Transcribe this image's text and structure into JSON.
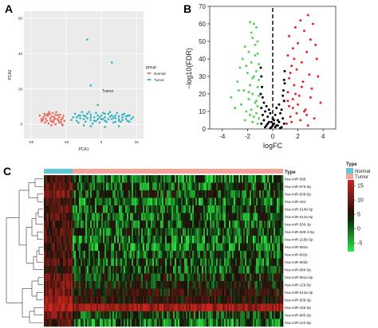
{
  "panels": {
    "a": {
      "letter": "A"
    },
    "b": {
      "letter": "B"
    },
    "c": {
      "letter": "C"
    }
  },
  "chart_data": [
    {
      "id": "pca",
      "type": "scatter",
      "xlabel": "PCA1",
      "ylabel": "PCA2",
      "xticks": [
        -20,
        -10,
        0,
        10
      ],
      "yticks": [
        0,
        20,
        40,
        60
      ],
      "xlim": [
        -22,
        12
      ],
      "ylim": [
        -8,
        64
      ],
      "legend": {
        "title": "group",
        "placement": "right",
        "entries": [
          "Normal",
          "Tumor"
        ]
      },
      "annotation": "Tumor",
      "colors": {
        "Normal": "#e8695a",
        "Tumor": "#2bb3c0"
      },
      "series": [
        {
          "name": "Normal",
          "points": [
            [
              -17,
              3
            ],
            [
              -16.5,
              4
            ],
            [
              -16,
              5
            ],
            [
              -15.5,
              2
            ],
            [
              -15,
              6
            ],
            [
              -14.5,
              3.5
            ],
            [
              -14,
              4.5
            ],
            [
              -13.5,
              2.5
            ],
            [
              -13,
              5.5
            ],
            [
              -12.5,
              3
            ],
            [
              -12,
              4
            ],
            [
              -11.5,
              1.5
            ],
            [
              -11,
              3.5
            ],
            [
              -10.5,
              2
            ],
            [
              -16,
              1
            ],
            [
              -15,
              0.5
            ],
            [
              -14,
              1.5
            ],
            [
              -13,
              0
            ],
            [
              -12,
              1
            ],
            [
              -11,
              -0.5
            ],
            [
              -17.5,
              5
            ],
            [
              -14.8,
              7
            ],
            [
              -13.8,
              6.5
            ],
            [
              -12.8,
              7
            ],
            [
              -11.8,
              5.5
            ],
            [
              -16.2,
              6
            ],
            [
              -15.2,
              4.8
            ],
            [
              -14.2,
              -0.5
            ],
            [
              -13.2,
              3.2
            ],
            [
              -12.2,
              2.2
            ],
            [
              -10.8,
              4.8
            ],
            [
              -11.2,
              0.2
            ],
            [
              -17,
              1.8
            ],
            [
              -15.8,
              3.2
            ],
            [
              -14.4,
              2.2
            ],
            [
              -13.4,
              4.2
            ],
            [
              -12.4,
              5.2
            ],
            [
              -11.4,
              2.8
            ],
            [
              -16.6,
              2.6
            ],
            [
              -15.4,
              5.6
            ],
            [
              -14.6,
              5.8
            ],
            [
              -13.6,
              1.2
            ]
          ]
        },
        {
          "name": "Tumor",
          "points": [
            [
              -8,
              4
            ],
            [
              -7,
              2
            ],
            [
              -6,
              5
            ],
            [
              -5,
              3
            ],
            [
              -4,
              6
            ],
            [
              -3,
              4
            ],
            [
              -2,
              2
            ],
            [
              -1,
              5
            ],
            [
              0,
              3
            ],
            [
              1,
              4
            ],
            [
              2,
              6
            ],
            [
              3,
              3
            ],
            [
              4,
              5
            ],
            [
              5,
              2
            ],
            [
              6,
              4
            ],
            [
              7,
              3
            ],
            [
              8,
              5
            ],
            [
              -7.5,
              6
            ],
            [
              -6.5,
              1
            ],
            [
              -5.5,
              7
            ],
            [
              -4.5,
              1.5
            ],
            [
              -3.5,
              7
            ],
            [
              -2.5,
              0.5
            ],
            [
              -1.5,
              6.5
            ],
            [
              -0.5,
              1
            ],
            [
              0.5,
              6.5
            ],
            [
              1.5,
              1.5
            ],
            [
              2.5,
              7
            ],
            [
              3.5,
              1
            ],
            [
              4.5,
              6.5
            ],
            [
              5.5,
              1.5
            ],
            [
              6.5,
              6
            ],
            [
              7.5,
              2
            ],
            [
              8.5,
              3
            ],
            [
              9,
              4
            ],
            [
              -6,
              3.5
            ],
            [
              -4,
              3.5
            ],
            [
              -2,
              4
            ],
            [
              0,
              5
            ],
            [
              2,
              3
            ],
            [
              4,
              3.5
            ],
            [
              6,
              5.5
            ],
            [
              -5,
              5
            ],
            [
              -3,
              2.5
            ],
            [
              -1,
              3
            ],
            [
              1,
              2
            ],
            [
              3,
              5
            ],
            [
              5,
              4.5
            ],
            [
              7,
              4.5
            ],
            [
              -7,
              4
            ],
            [
              -8.5,
              2.5
            ],
            [
              -3,
              5.5
            ],
            [
              1,
              6
            ],
            [
              3.5,
              4
            ],
            [
              6,
              2.5
            ],
            [
              -4.5,
              4.5
            ],
            [
              -0.5,
              4
            ],
            [
              2.5,
              4.5
            ],
            [
              5,
              3
            ],
            [
              7.5,
              5
            ],
            [
              -1.5,
              2
            ],
            [
              0.5,
              3
            ],
            [
              -6.5,
              5
            ],
            [
              4,
              1.5
            ],
            [
              8,
              1.5
            ],
            [
              -3,
              -1
            ],
            [
              1,
              -1.5
            ],
            [
              5,
              -1
            ],
            [
              -5,
              -0.5
            ],
            [
              -4,
              48
            ],
            [
              -3,
              22
            ],
            [
              3,
              35
            ],
            [
              -1,
              11
            ]
          ]
        }
      ]
    },
    {
      "id": "volcano",
      "type": "scatter",
      "xlabel": "logFC",
      "ylabel": "−log10(FDR)",
      "xticks": [
        -4,
        -2,
        0,
        2,
        4
      ],
      "yticks": [
        0,
        10,
        20,
        30,
        40,
        50,
        60,
        70
      ],
      "xlim": [
        -5,
        5
      ],
      "ylim": [
        0,
        70
      ],
      "colors": {
        "down": "#55d35a",
        "ns": "#000000",
        "up": "#e8262a"
      },
      "series": [
        {
          "name": "down",
          "points": [
            [
              -1.8,
              61
            ],
            [
              -1.5,
              60
            ],
            [
              -1.3,
              58
            ],
            [
              -2.2,
              47
            ],
            [
              -1.6,
              52
            ],
            [
              -1.2,
              50
            ],
            [
              -1.9,
              44
            ],
            [
              -1.4,
              42
            ],
            [
              -2.4,
              40
            ],
            [
              -1.7,
              38
            ],
            [
              -1.1,
              37
            ],
            [
              -2.6,
              35
            ],
            [
              -1.3,
              33
            ],
            [
              -2,
              32
            ],
            [
              -1.5,
              30
            ],
            [
              -1.1,
              28
            ],
            [
              -2.8,
              27
            ],
            [
              -1.8,
              25
            ],
            [
              -1.2,
              24
            ],
            [
              -2.3,
              22
            ],
            [
              -1.6,
              20
            ],
            [
              -1.1,
              19
            ],
            [
              -1.9,
              17
            ],
            [
              -1.4,
              15
            ],
            [
              -2.5,
              14
            ],
            [
              -1.2,
              13
            ],
            [
              -1.7,
              11
            ],
            [
              -2.1,
              10
            ],
            [
              -1.3,
              9
            ],
            [
              -1.8,
              8
            ],
            [
              -1.5,
              7
            ],
            [
              -1.1,
              6
            ],
            [
              -2.2,
              5
            ],
            [
              -1.6,
              4
            ],
            [
              -1.2,
              3
            ],
            [
              -3.3,
              18
            ],
            [
              -3,
              12
            ],
            [
              -2.7,
              22
            ],
            [
              -1.7,
              55
            ],
            [
              -1.4,
              48
            ],
            [
              -2.1,
              36
            ],
            [
              -1.2,
              43
            ],
            [
              -1.6,
              29
            ],
            [
              -1.9,
              21
            ],
            [
              -1.3,
              16
            ]
          ]
        },
        {
          "name": "ns",
          "points": [
            [
              -0.9,
              3
            ],
            [
              -0.7,
              5
            ],
            [
              -0.5,
              2
            ],
            [
              -0.3,
              4
            ],
            [
              -0.1,
              1
            ],
            [
              0.1,
              3
            ],
            [
              0.3,
              2
            ],
            [
              0.5,
              4
            ],
            [
              0.7,
              1
            ],
            [
              0.9,
              3
            ],
            [
              -0.8,
              8
            ],
            [
              -0.6,
              10
            ],
            [
              -0.4,
              7
            ],
            [
              -0.2,
              9
            ],
            [
              0,
              6
            ],
            [
              0.2,
              8
            ],
            [
              0.4,
              5
            ],
            [
              0.6,
              9
            ],
            [
              0.8,
              6
            ],
            [
              -0.9,
              12
            ],
            [
              -0.7,
              15
            ],
            [
              -0.5,
              13
            ],
            [
              0.5,
              14
            ],
            [
              0.7,
              11
            ],
            [
              0.9,
              16
            ],
            [
              -0.95,
              20
            ],
            [
              -0.85,
              24
            ],
            [
              0.85,
              22
            ],
            [
              0.95,
              26
            ],
            [
              -0.6,
              1
            ],
            [
              -0.2,
              0.5
            ],
            [
              0.2,
              1
            ],
            [
              0.6,
              0.5
            ],
            [
              -0.4,
              3
            ],
            [
              0.4,
              2
            ],
            [
              0,
              2
            ],
            [
              -0.1,
              4
            ],
            [
              0.1,
              5
            ],
            [
              -0.8,
              18
            ],
            [
              0.8,
              19
            ],
            [
              -0.9,
              30
            ],
            [
              0.9,
              28
            ],
            [
              -0.95,
              35
            ],
            [
              0.95,
              33
            ],
            [
              -0.3,
              11
            ],
            [
              0.3,
              12
            ]
          ]
        },
        {
          "name": "up",
          "points": [
            [
              2.8,
              65
            ],
            [
              2.2,
              62
            ],
            [
              3.2,
              60
            ],
            [
              1.8,
              58
            ],
            [
              2.5,
              56
            ],
            [
              1.3,
              53
            ],
            [
              3,
              51
            ],
            [
              2,
              49
            ],
            [
              1.6,
              46
            ],
            [
              2.7,
              44
            ],
            [
              1.2,
              42
            ],
            [
              3.5,
              40
            ],
            [
              2.3,
              38
            ],
            [
              1.5,
              36
            ],
            [
              1.9,
              34
            ],
            [
              2.9,
              31
            ],
            [
              1.3,
              29
            ],
            [
              2.4,
              27
            ],
            [
              1.7,
              25
            ],
            [
              3.1,
              23
            ],
            [
              1.2,
              21
            ],
            [
              2.1,
              19
            ],
            [
              1.6,
              17
            ],
            [
              3.8,
              15
            ],
            [
              1.3,
              13
            ],
            [
              2.6,
              11
            ],
            [
              1.9,
              9
            ],
            [
              1.4,
              7
            ],
            [
              3.3,
              6
            ],
            [
              2.2,
              5
            ],
            [
              1.5,
              4
            ],
            [
              1.1,
              3
            ],
            [
              2.8,
              2
            ],
            [
              1.8,
              20
            ],
            [
              3.6,
              30
            ],
            [
              2.5,
              10
            ],
            [
              1.4,
              32
            ],
            [
              2,
              14
            ],
            [
              2.7,
              8
            ],
            [
              1.6,
              12
            ],
            [
              3,
              18
            ],
            [
              2.3,
              24
            ],
            [
              1.2,
              16
            ],
            [
              3.4,
              48
            ],
            [
              1.7,
              40
            ]
          ]
        }
      ],
      "threshold_x": 0
    },
    {
      "id": "heatmap",
      "type": "heatmap",
      "legend_annotation": {
        "title": "Type",
        "entries": [
          "Normal",
          "Tumor"
        ],
        "colors": [
          "#5fc8d2",
          "#f2a39a"
        ]
      },
      "legend_annotation_title_right": "Type",
      "colorbar": {
        "ticks": [
          15,
          10,
          5,
          0,
          -5
        ],
        "range": [
          -8,
          17
        ],
        "colors": [
          "#22e63a",
          "#000000",
          "#d42a2a"
        ]
      },
      "rows": [
        "hsa-miR-599",
        "hsa-miR-875-5p",
        "hsa-miR-508-5p",
        "hsa-miR-184",
        "hsa-miR-514b-5p",
        "hsa-miR-514a-5p",
        "hsa-miR-506-3p",
        "hsa-miR-509-3-5p",
        "hsa-miR-216b-5p",
        "hsa-miR-892a",
        "hsa-miR-891b",
        "hsa-miR-892b",
        "hsa-miR-888-5p",
        "hsa-miR-891a-5p",
        "hsa-miR-129-5p",
        "hsa-miR-514a-3p",
        "hsa-miR-508-3p",
        "hsa-miR-155-5p",
        "hsa-miR-885-5p",
        "hsa-miR-122-5p"
      ],
      "normal_fraction": 0.12,
      "row_mean_normal": [
        4,
        6,
        9,
        3,
        5,
        5,
        5,
        5,
        4,
        4,
        5,
        5,
        4,
        7,
        8,
        9,
        11,
        15,
        8,
        5
      ],
      "row_mean_tumor": [
        -3,
        -2,
        -1,
        -3,
        -2,
        -2,
        -2,
        -2,
        -3,
        -3,
        -2,
        -2,
        -2,
        0,
        1,
        2,
        3,
        12,
        -1,
        -3
      ]
    }
  ]
}
